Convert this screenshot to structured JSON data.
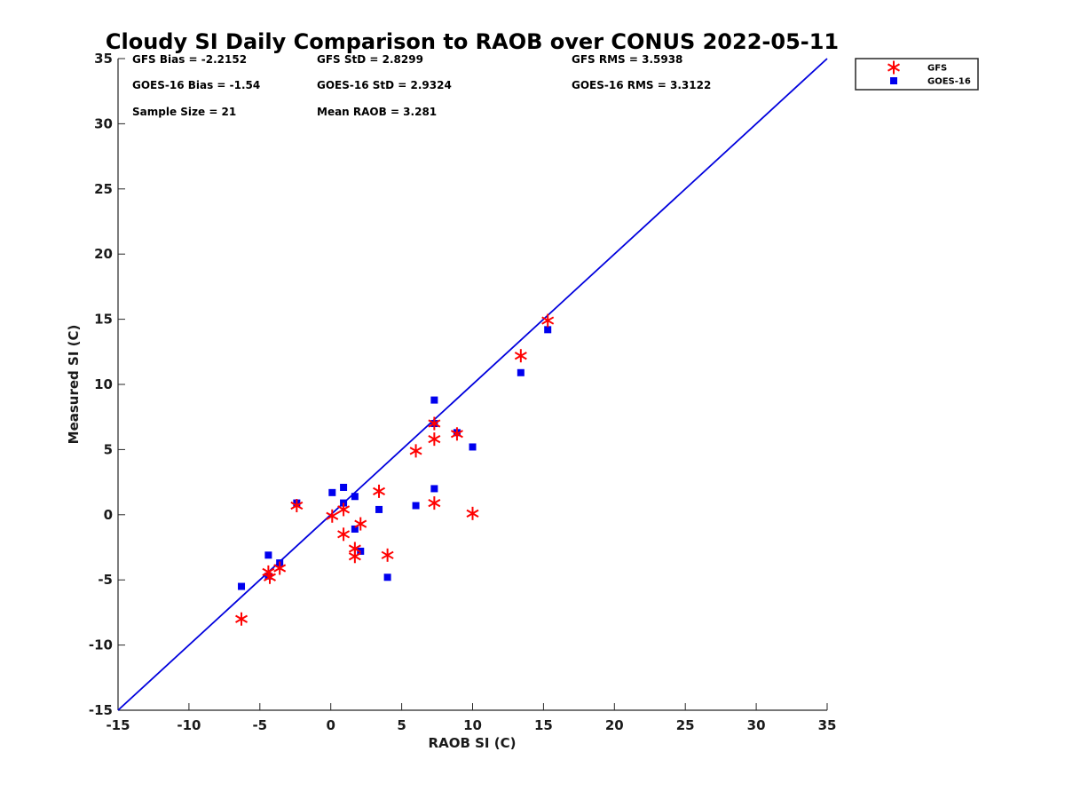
{
  "chart_data": {
    "type": "scatter",
    "title": "Cloudy SI Daily Comparison to RAOB over CONUS 2022-05-11",
    "xlabel": "RAOB SI (C)",
    "ylabel": "Measured SI (C)",
    "xlim": [
      -15,
      35
    ],
    "ylim": [
      -15,
      35
    ],
    "xticks": [
      -15,
      -10,
      -5,
      0,
      5,
      10,
      15,
      20,
      25,
      30,
      35
    ],
    "yticks": [
      -15,
      -10,
      -5,
      0,
      5,
      10,
      15,
      20,
      25,
      30,
      35
    ],
    "grid": false,
    "legend_position": "outside-top-right",
    "reference_line": {
      "from": [
        -15,
        -15
      ],
      "to": [
        35,
        35
      ],
      "color": "#0000dd"
    },
    "stats": [
      "GFS Bias = -2.2152",
      "GFS StD = 2.8299",
      "GFS RMS = 3.5938",
      "GOES-16 Bias = -1.54",
      "GOES-16 StD = 2.9324",
      "GOES-16 RMS = 3.3122",
      "Sample Size = 21",
      "Mean RAOB = 3.281"
    ],
    "series": [
      {
        "name": "GFS",
        "marker": "asterisk",
        "color": "#ff0000",
        "points": [
          [
            -6.3,
            -8.0
          ],
          [
            -4.4,
            -4.4
          ],
          [
            -4.3,
            -4.8
          ],
          [
            -3.6,
            -4.1
          ],
          [
            -2.4,
            0.7
          ],
          [
            0.1,
            -0.1
          ],
          [
            0.9,
            0.4
          ],
          [
            0.9,
            -1.5
          ],
          [
            1.7,
            -2.6
          ],
          [
            1.7,
            -3.2
          ],
          [
            2.1,
            -0.7
          ],
          [
            3.4,
            1.8
          ],
          [
            4.0,
            -3.1
          ],
          [
            6.0,
            4.9
          ],
          [
            7.3,
            7.0
          ],
          [
            7.3,
            5.8
          ],
          [
            7.3,
            0.9
          ],
          [
            8.9,
            6.2
          ],
          [
            10.0,
            0.1
          ],
          [
            13.4,
            12.2
          ],
          [
            15.3,
            14.9
          ]
        ]
      },
      {
        "name": "GOES-16",
        "marker": "square",
        "color": "#0000ee",
        "points": [
          [
            -6.3,
            -5.5
          ],
          [
            -4.4,
            -3.1
          ],
          [
            -4.4,
            -4.7
          ],
          [
            -3.6,
            -3.7
          ],
          [
            -2.4,
            0.9
          ],
          [
            0.1,
            1.7
          ],
          [
            0.9,
            2.1
          ],
          [
            0.9,
            0.9
          ],
          [
            1.7,
            1.4
          ],
          [
            1.7,
            -1.1
          ],
          [
            2.1,
            -2.8
          ],
          [
            3.4,
            0.4
          ],
          [
            4.0,
            -4.8
          ],
          [
            6.0,
            0.7
          ],
          [
            7.3,
            8.8
          ],
          [
            7.3,
            2.0
          ],
          [
            7.3,
            7.0
          ],
          [
            8.9,
            6.3
          ],
          [
            10.0,
            5.2
          ],
          [
            13.4,
            10.9
          ],
          [
            15.3,
            14.2
          ]
        ]
      }
    ]
  }
}
